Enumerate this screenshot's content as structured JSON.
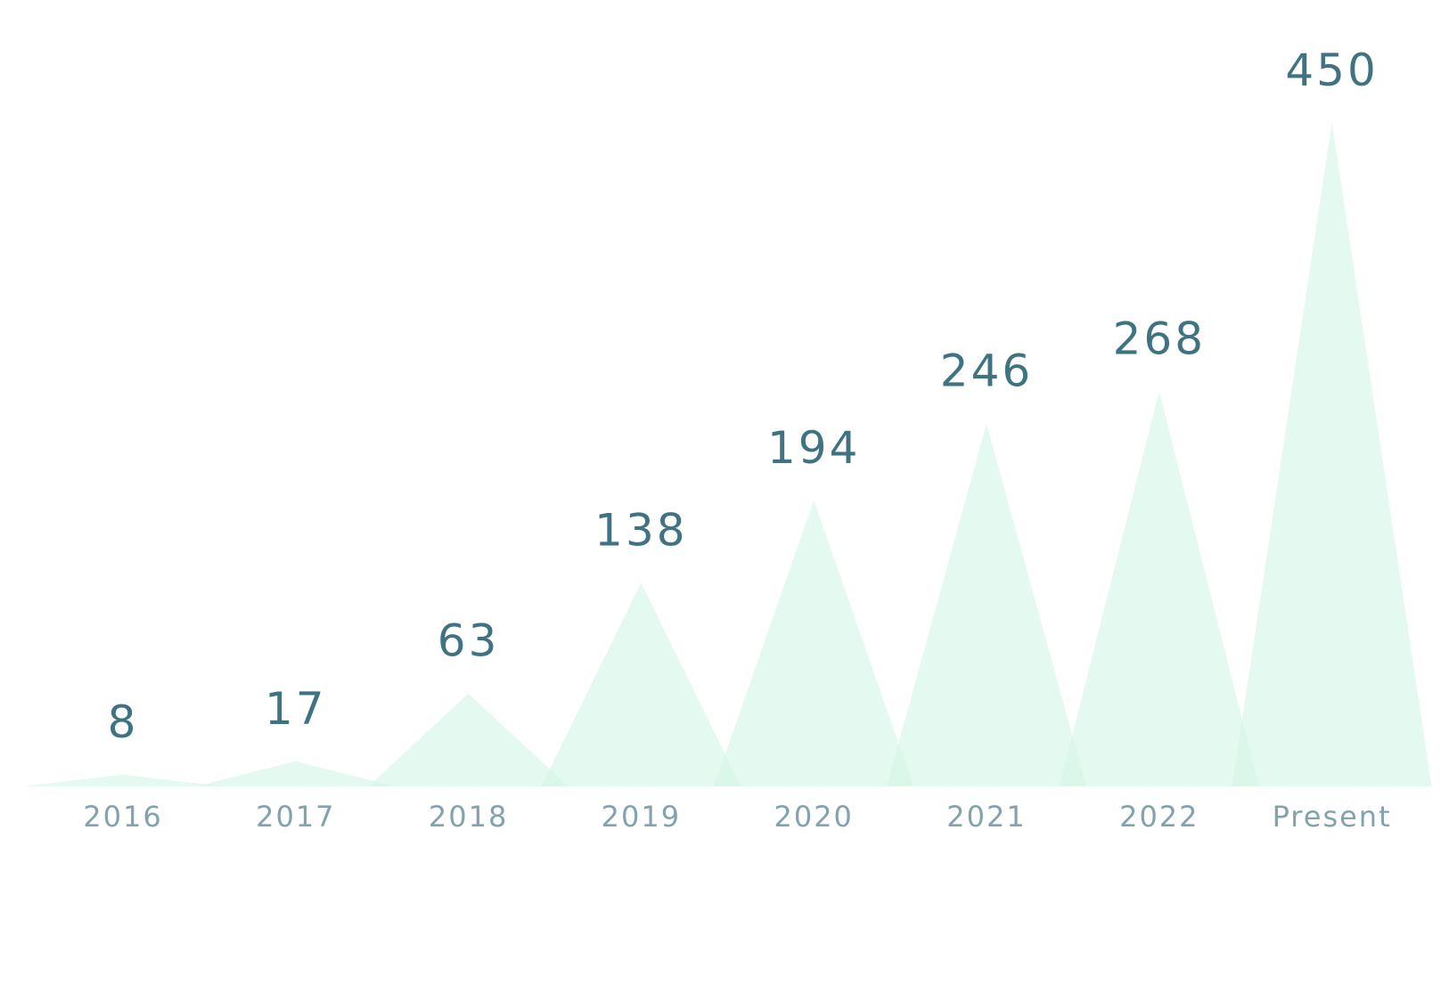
{
  "chart_data": {
    "type": "area",
    "title": "",
    "xlabel": "",
    "ylabel": "",
    "categories": [
      "2016",
      "2017",
      "2018",
      "2019",
      "2020",
      "2021",
      "2022",
      "Present"
    ],
    "values": [
      8,
      17,
      63,
      138,
      194,
      246,
      268,
      450
    ],
    "ylim": [
      0,
      450
    ],
    "grid": false,
    "legend": "none",
    "colors": {
      "peak_fill": "#d4f5e6",
      "value_text": "#3f7382",
      "category_text": "#82a2ad"
    }
  }
}
